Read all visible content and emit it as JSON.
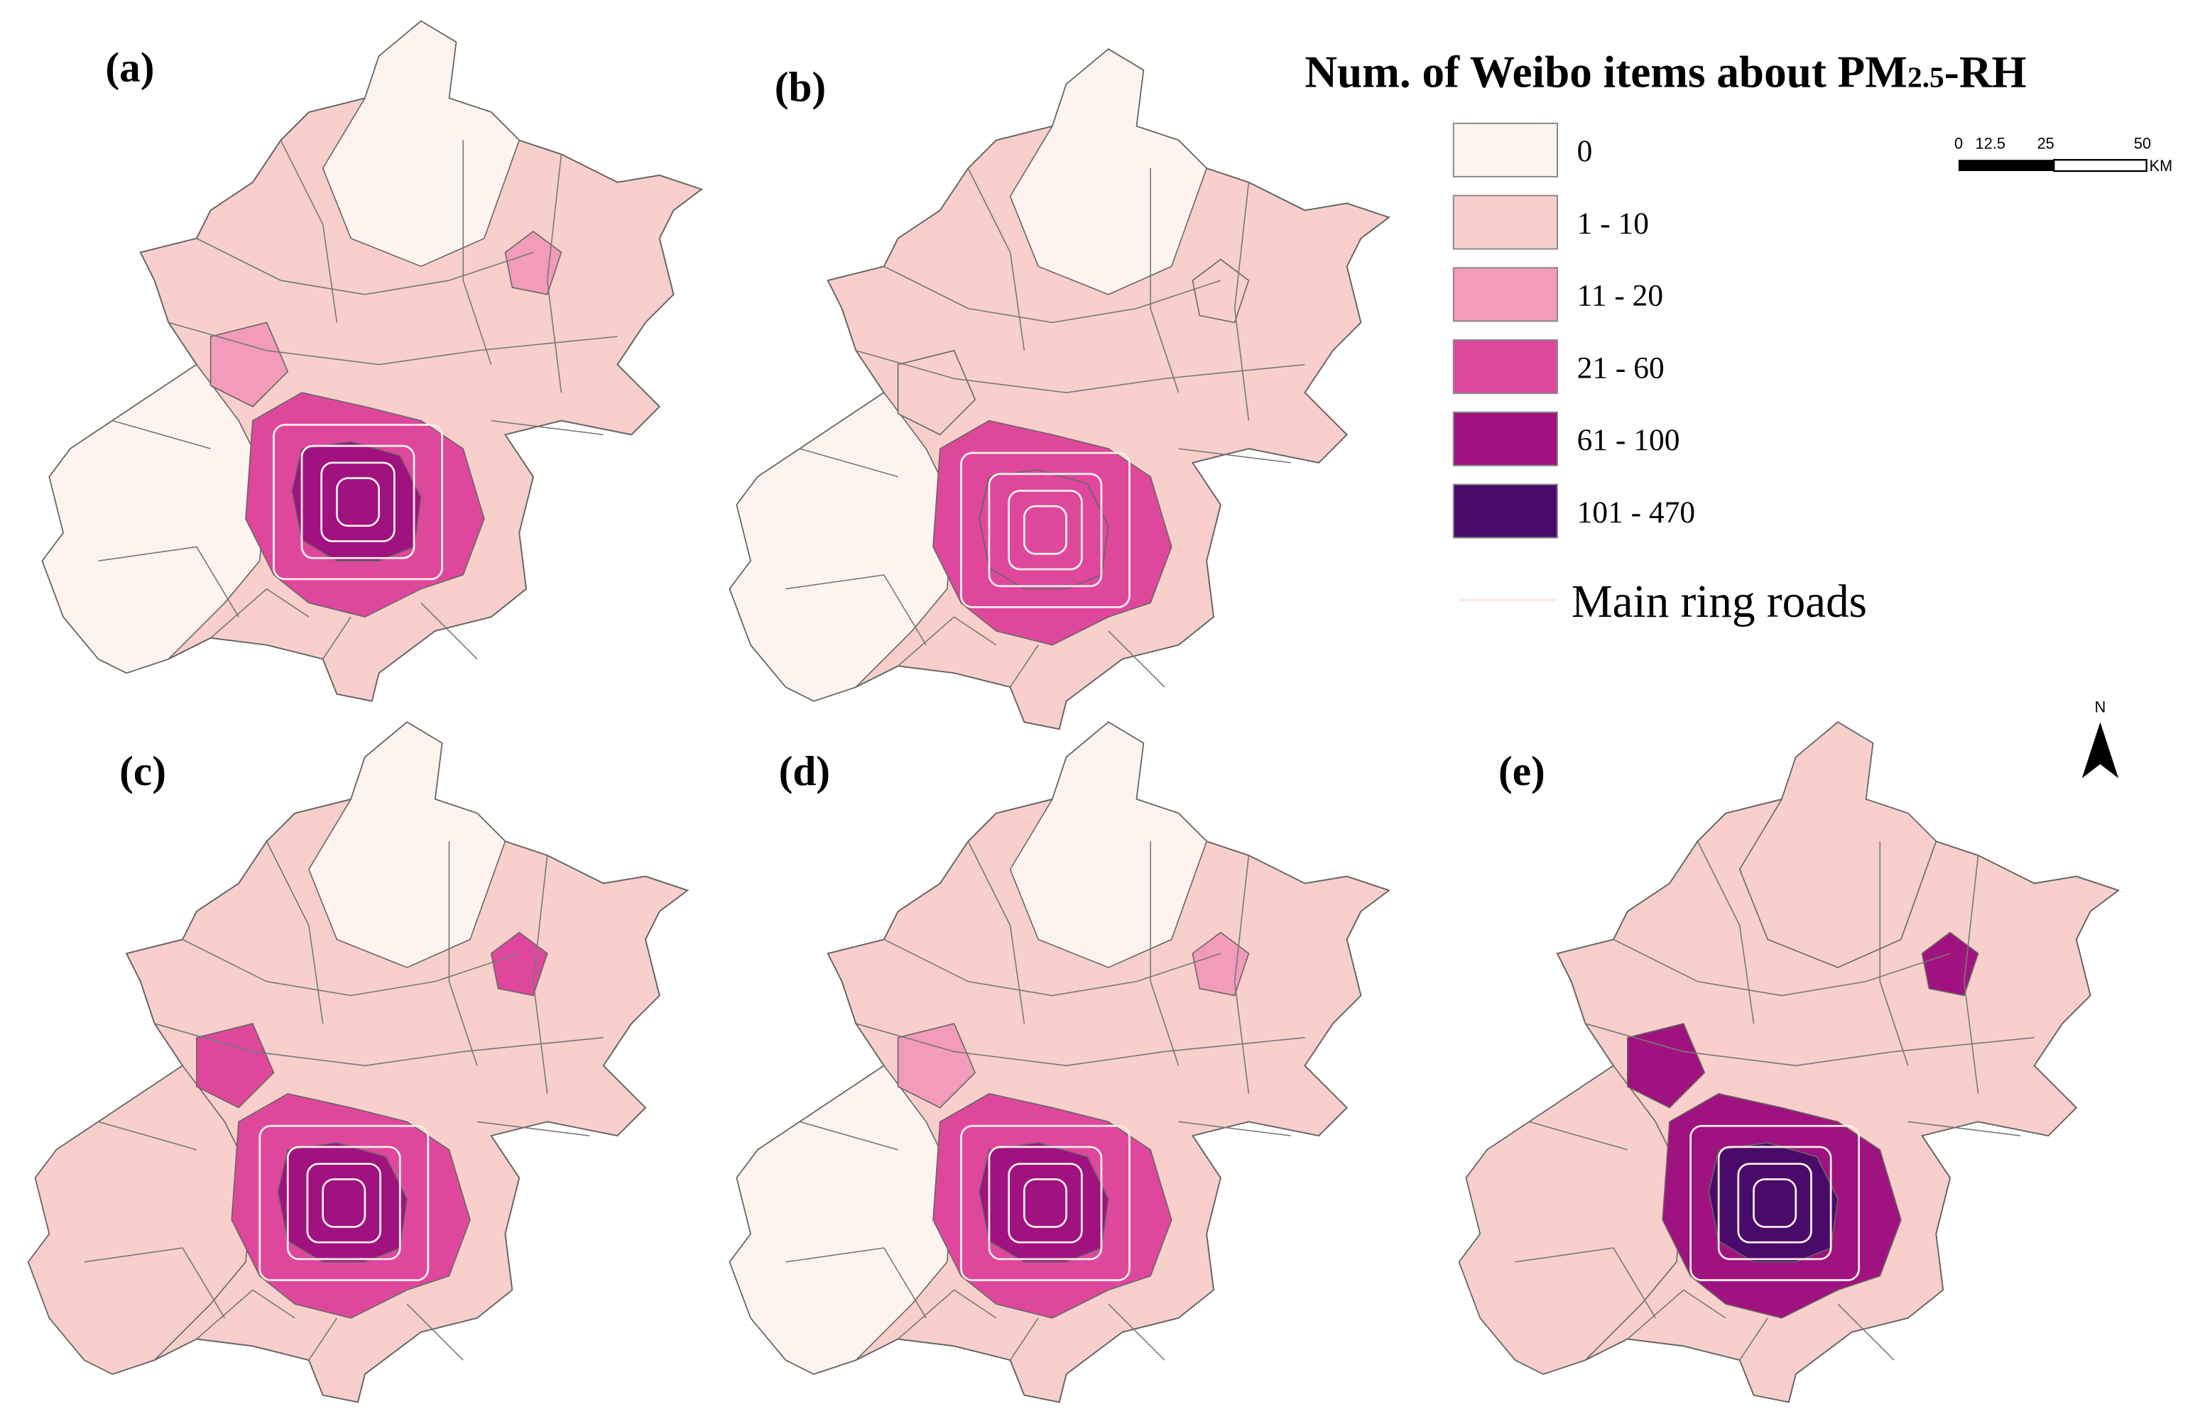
{
  "panels": [
    {
      "label": "(a)"
    },
    {
      "label": "(b)"
    },
    {
      "label": "(c)"
    },
    {
      "label": "(d)"
    },
    {
      "label": "(e)"
    }
  ],
  "legend": {
    "title": {
      "before": "Num. of Weibo items about PM",
      "subscript": "2.5",
      "after": "-RH"
    },
    "items": [
      {
        "label": "0",
        "color": "#fdf4ef"
      },
      {
        "label": "1 - 10",
        "color": "#f8cfcb"
      },
      {
        "label": "11 - 20",
        "color": "#f39bbb"
      },
      {
        "label": "21 - 60",
        "color": "#df479d"
      },
      {
        "label": "61 - 100",
        "color": "#a0127f"
      },
      {
        "label": "101 - 470",
        "color": "#4a0a6b"
      }
    ],
    "line_item": "Main ring roads"
  },
  "scale_bar": {
    "labels": [
      "0",
      "12.5",
      "25",
      "50"
    ],
    "unit": "KM"
  },
  "north_arrow": "N"
}
